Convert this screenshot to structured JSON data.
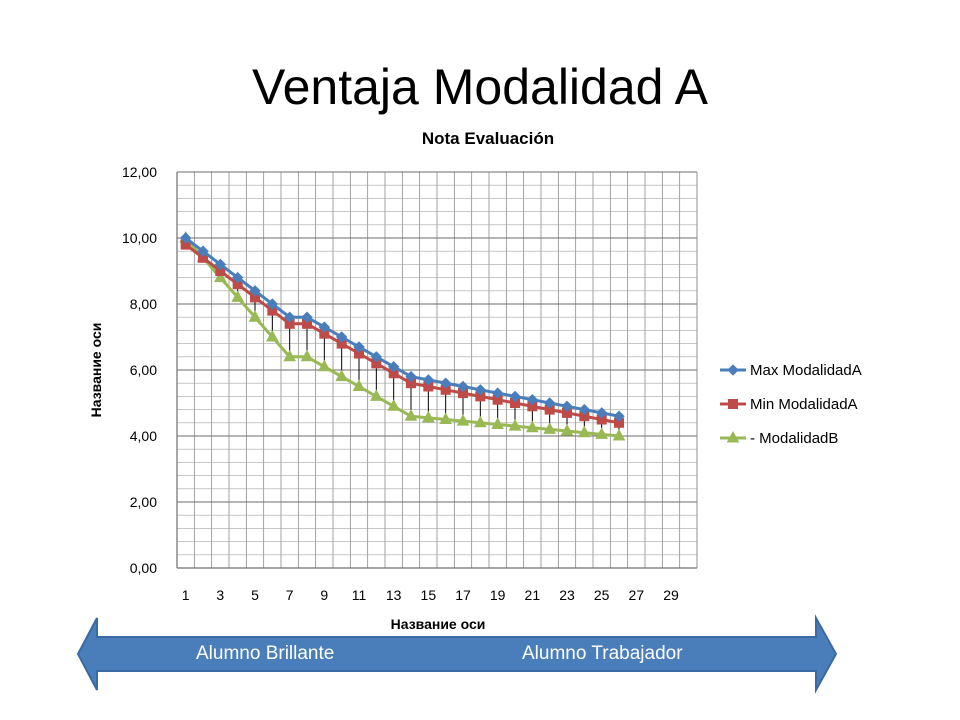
{
  "slide": {
    "title": "Ventaja Modalidad A"
  },
  "arrow": {
    "left_label": "Alumno Brillante",
    "right_label": "Alumno Trabajador",
    "fill_color": "#4a7ebb"
  },
  "chart_data": {
    "type": "line",
    "title": "Nota Evaluación",
    "xlabel": "Название оси",
    "ylabel": "Название оси",
    "x": [
      1,
      2,
      3,
      4,
      5,
      6,
      7,
      8,
      9,
      10,
      11,
      12,
      13,
      14,
      15,
      16,
      17,
      18,
      19,
      20,
      21,
      22,
      23,
      24,
      25,
      26
    ],
    "x_tick_labels": [
      "1",
      "3",
      "5",
      "7",
      "9",
      "11",
      "13",
      "15",
      "17",
      "19",
      "21",
      "23",
      "25",
      "27",
      "29"
    ],
    "x_range": [
      0.5,
      30.5
    ],
    "ylim": [
      0,
      12
    ],
    "y_tick_labels": [
      "0,00",
      "2,00",
      "4,00",
      "6,00",
      "8,00",
      "10,00",
      "12,00"
    ],
    "y_ticks": [
      0,
      2,
      4,
      6,
      8,
      10,
      12
    ],
    "grid": true,
    "legend_position": "right",
    "drop_lines": true,
    "series": [
      {
        "name": "Max ModalidadA",
        "color": "#4a7ebb",
        "marker": "diamond",
        "values": [
          10.0,
          9.6,
          9.2,
          8.8,
          8.4,
          8.0,
          7.6,
          7.6,
          7.3,
          7.0,
          6.7,
          6.4,
          6.1,
          5.8,
          5.7,
          5.6,
          5.5,
          5.4,
          5.3,
          5.2,
          5.1,
          5.0,
          4.9,
          4.8,
          4.7,
          4.6
        ]
      },
      {
        "name": "Min ModalidadA",
        "color": "#be4b48",
        "marker": "square",
        "values": [
          9.8,
          9.4,
          9.0,
          8.6,
          8.2,
          7.8,
          7.4,
          7.4,
          7.1,
          6.8,
          6.5,
          6.2,
          5.9,
          5.6,
          5.5,
          5.4,
          5.3,
          5.2,
          5.1,
          5.0,
          4.9,
          4.8,
          4.7,
          4.6,
          4.5,
          4.4
        ]
      },
      {
        "name": "- ModalidadB",
        "color": "#98b954",
        "marker": "triangle",
        "values": [
          10.0,
          9.4,
          8.8,
          8.2,
          7.6,
          7.0,
          6.4,
          6.4,
          6.1,
          5.8,
          5.5,
          5.2,
          4.9,
          4.6,
          4.55,
          4.5,
          4.45,
          4.4,
          4.35,
          4.3,
          4.25,
          4.2,
          4.15,
          4.1,
          4.05,
          4.0
        ]
      }
    ]
  }
}
